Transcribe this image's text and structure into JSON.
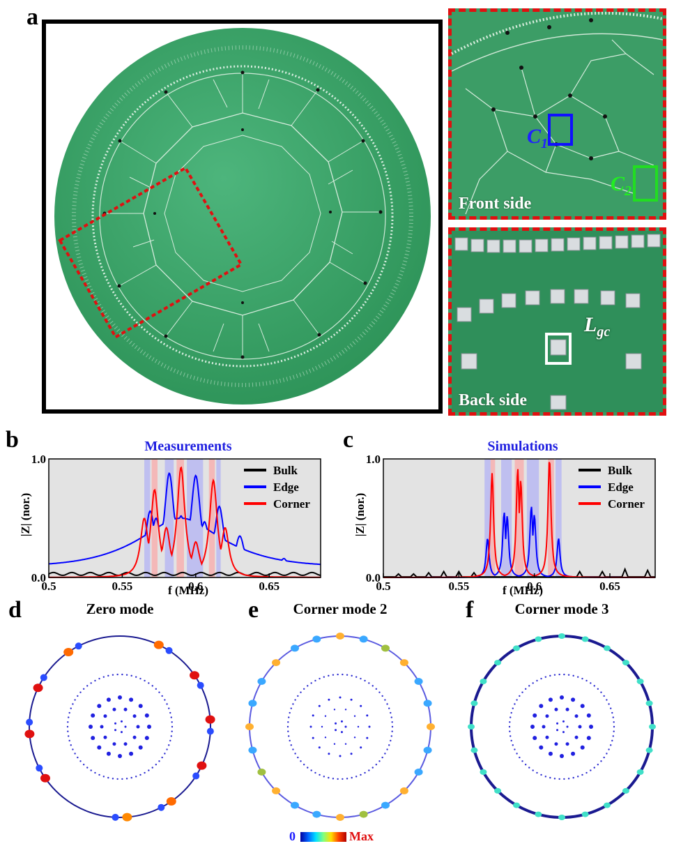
{
  "panel_labels": {
    "a": "a",
    "b": "b",
    "c": "c",
    "d": "d",
    "e": "e",
    "f": "f"
  },
  "photos": {
    "front_caption": "Front side",
    "back_caption": "Back side",
    "c1_label": "C",
    "c1_sub": "1",
    "c2_label": "C",
    "c2_sub": "2",
    "lgc_label": "L",
    "lgc_sub": "gc"
  },
  "chart_data": [
    {
      "type": "line",
      "title": "Measurements",
      "xlabel": "f (MHz)",
      "ylabel": "|Z| (nor.)",
      "xlim": [
        0.5,
        0.685
      ],
      "ylim": [
        0,
        1
      ],
      "xticks": [
        "0.5",
        "0.55",
        "0.6",
        "0.65"
      ],
      "yticks": [
        "0.0",
        "1.0"
      ],
      "legend": [
        "Bulk",
        "Edge",
        "Corner"
      ],
      "legend_position": "top-right",
      "series": [
        {
          "name": "Bulk",
          "color": "#000000",
          "x": [
            0.5,
            0.525,
            0.55,
            0.575,
            0.6,
            0.625,
            0.65,
            0.685
          ],
          "values": [
            0.03,
            0.03,
            0.03,
            0.03,
            0.03,
            0.03,
            0.03,
            0.03
          ]
        },
        {
          "name": "Edge",
          "color": "#0000ff",
          "x": [
            0.5,
            0.55,
            0.569,
            0.573,
            0.582,
            0.586,
            0.59,
            0.6,
            0.606,
            0.616,
            0.63,
            0.66,
            0.685
          ],
          "values": [
            0.08,
            0.2,
            0.56,
            0.5,
            0.88,
            0.45,
            0.52,
            0.86,
            0.47,
            0.6,
            0.35,
            0.16,
            0.1
          ]
        },
        {
          "name": "Corner",
          "color": "#ff0000",
          "x": [
            0.565,
            0.572,
            0.58,
            0.59,
            0.6,
            0.612,
            0.62
          ],
          "values": [
            0.5,
            0.74,
            0.42,
            0.93,
            0.3,
            0.82,
            0.42
          ]
        }
      ],
      "highlight_bands_blue": [
        [
          0.565,
          0.569
        ],
        [
          0.579,
          0.585
        ],
        [
          0.594,
          0.605
        ],
        [
          0.614,
          0.617
        ]
      ],
      "highlight_bands_red": [
        [
          0.57,
          0.574
        ],
        [
          0.587,
          0.592
        ],
        [
          0.609,
          0.613
        ]
      ]
    },
    {
      "type": "line",
      "title": "Simulations",
      "xlabel": "f (MHz)",
      "ylabel": "|Z| (nor.)",
      "xlim": [
        0.5,
        0.68
      ],
      "ylim": [
        0,
        1
      ],
      "xticks": [
        "0.5",
        "0.55",
        "0.6",
        "0.65"
      ],
      "yticks": [
        "0.0",
        "1.0"
      ],
      "legend": [
        "Bulk",
        "Edge",
        "Corner"
      ],
      "legend_position": "top-right",
      "series": [
        {
          "name": "Bulk",
          "color": "#000000",
          "x": [
            0.51,
            0.52,
            0.53,
            0.54,
            0.55,
            0.56,
            0.63,
            0.645,
            0.66,
            0.675
          ],
          "values": [
            0.03,
            0.03,
            0.04,
            0.05,
            0.05,
            0.04,
            0.05,
            0.05,
            0.07,
            0.06
          ]
        },
        {
          "name": "Edge",
          "color": "#0000ff",
          "x": [
            0.569,
            0.58,
            0.582,
            0.598,
            0.6,
            0.616
          ],
          "values": [
            0.33,
            0.55,
            0.52,
            0.6,
            0.53,
            0.33
          ]
        },
        {
          "name": "Corner",
          "color": "#ff0000",
          "x": [
            0.572,
            0.589,
            0.591,
            0.61
          ],
          "values": [
            0.88,
            0.92,
            0.82,
            1.0
          ]
        }
      ],
      "highlight_bands_blue": [
        [
          0.567,
          0.571
        ],
        [
          0.578,
          0.585
        ],
        [
          0.595,
          0.603
        ],
        [
          0.614,
          0.618
        ]
      ],
      "highlight_bands_red": [
        [
          0.571,
          0.574
        ],
        [
          0.587,
          0.593
        ],
        [
          0.609,
          0.613
        ]
      ]
    }
  ],
  "mode_plots": [
    {
      "title": "Zero mode"
    },
    {
      "title": "Corner mode 2"
    },
    {
      "title": "Corner mode 3"
    }
  ],
  "colorbar": {
    "min_label": "0",
    "max_label": "Max"
  },
  "colors": {
    "board_green": "#3aa76a",
    "dashed_red": "#e01010",
    "c1_box": "#1010ff",
    "c2_box": "#22dd22"
  }
}
